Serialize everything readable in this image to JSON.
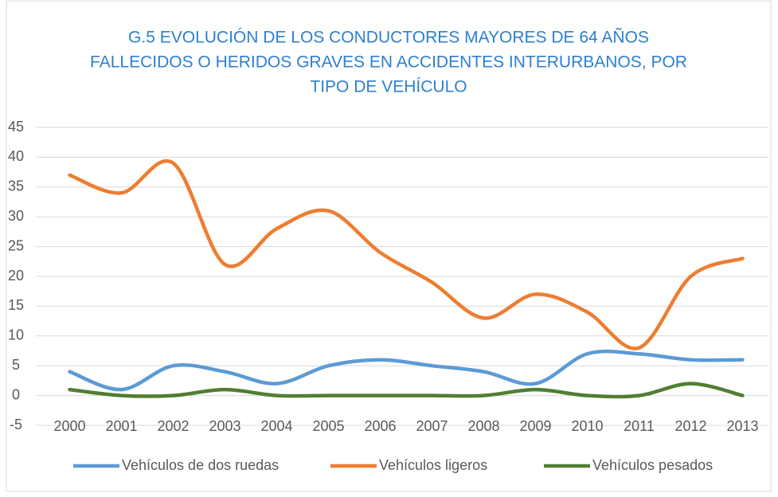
{
  "chart_data": {
    "type": "line",
    "title": [
      "G.5 EVOLUCIÓN DE LOS CONDUCTORES MAYORES DE 64 AÑOS",
      "FALLECIDOS O HERIDOS GRAVES EN ACCIDENTES INTERURBANOS, POR",
      "TIPO DE VEHÍCULO"
    ],
    "categories": [
      "2000",
      "2001",
      "2002",
      "2003",
      "2004",
      "2005",
      "2006",
      "2007",
      "2008",
      "2009",
      "2010",
      "2011",
      "2012",
      "2013"
    ],
    "series": [
      {
        "name": "Vehículos de dos ruedas",
        "color": "#5b9bd5",
        "values": [
          4,
          1,
          5,
          4,
          2,
          5,
          6,
          5,
          4,
          2,
          7,
          7,
          6,
          6
        ]
      },
      {
        "name": "Vehículos ligeros",
        "color": "#ed7d31",
        "values": [
          37,
          34,
          39,
          22,
          28,
          31,
          24,
          19,
          13,
          17,
          14,
          8,
          20,
          23
        ]
      },
      {
        "name": "Vehículos pesados",
        "color": "#507e32",
        "values": [
          1,
          0,
          0,
          1,
          0,
          0,
          0,
          0,
          0,
          1,
          0,
          0,
          2,
          0
        ]
      }
    ],
    "ylim": [
      -5,
      45
    ],
    "yticks": [
      -5,
      0,
      5,
      10,
      15,
      20,
      25,
      30,
      35,
      40,
      45
    ],
    "grid": true,
    "smooth": true,
    "legend": "bottom"
  }
}
